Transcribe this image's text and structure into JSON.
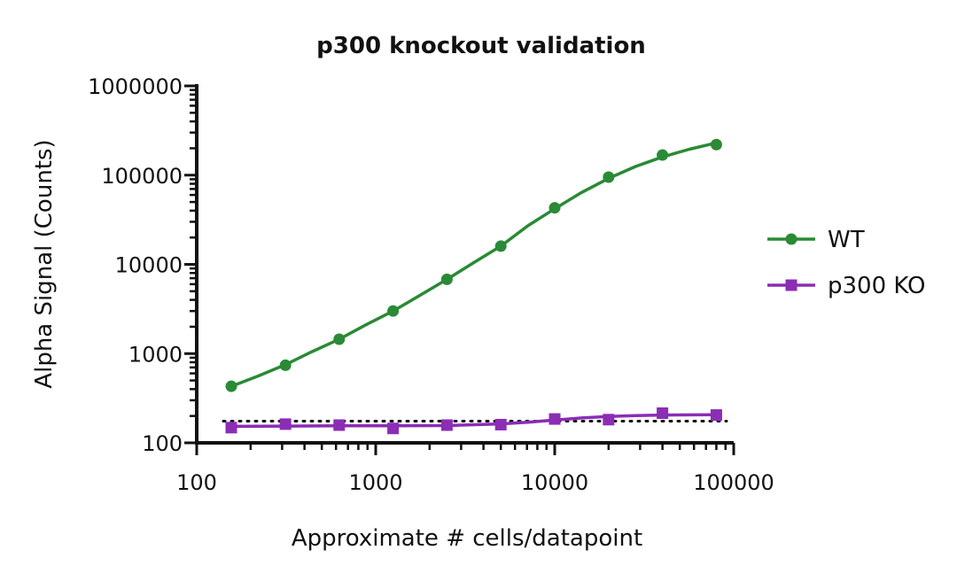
{
  "chart_data": {
    "type": "scatter",
    "title": "p300 knockout validation",
    "xlabel": "Approximate # cells/datapoint",
    "ylabel": "Alpha Signal (Counts)",
    "x_scale": "log",
    "y_scale": "log",
    "xlim": [
      100,
      100000
    ],
    "ylim": [
      100,
      1000000
    ],
    "x_ticks": [
      100,
      1000,
      10000,
      100000
    ],
    "y_ticks": [
      100,
      1000,
      10000,
      100000,
      1000000
    ],
    "x_tick_labels": [
      "100",
      "1000",
      "10000",
      "100000"
    ],
    "y_tick_labels": [
      "100",
      "1000",
      "10000",
      "100000",
      "1000000"
    ],
    "legend_position": "right",
    "grid": false,
    "series": [
      {
        "name": "WT",
        "color": "#2a8a35",
        "marker": "circle",
        "x": [
          156,
          313,
          625,
          1250,
          2500,
          5000,
          10000,
          20000,
          40000,
          80000
        ],
        "y": [
          430,
          740,
          1450,
          3000,
          6800,
          16000,
          43000,
          95000,
          168000,
          220000
        ],
        "fit_curve": [
          [
            156,
            430
          ],
          [
            220,
            560
          ],
          [
            313,
            750
          ],
          [
            440,
            1050
          ],
          [
            625,
            1450
          ],
          [
            880,
            2100
          ],
          [
            1250,
            3000
          ],
          [
            1770,
            4500
          ],
          [
            2500,
            6800
          ],
          [
            3540,
            10500
          ],
          [
            5000,
            16000
          ],
          [
            7070,
            27000
          ],
          [
            10000,
            42000
          ],
          [
            14140,
            64000
          ],
          [
            20000,
            92000
          ],
          [
            28280,
            125000
          ],
          [
            40000,
            160000
          ],
          [
            56570,
            195000
          ],
          [
            80000,
            230000
          ]
        ]
      },
      {
        "name": "p300 KO",
        "color": "#8b2db5",
        "marker": "square",
        "x": [
          156,
          313,
          625,
          1250,
          2500,
          5000,
          10000,
          20000,
          40000,
          80000
        ],
        "y": [
          148,
          162,
          158,
          145,
          158,
          160,
          185,
          182,
          215,
          205
        ],
        "fit_curve": [
          [
            156,
            153
          ],
          [
            313,
            154
          ],
          [
            625,
            155
          ],
          [
            1250,
            155
          ],
          [
            2500,
            156
          ],
          [
            5000,
            163
          ],
          [
            7070,
            170
          ],
          [
            10000,
            180
          ],
          [
            14140,
            190
          ],
          [
            20000,
            197
          ],
          [
            28280,
            202
          ],
          [
            40000,
            205
          ],
          [
            80000,
            207
          ]
        ]
      }
    ],
    "reference_line": {
      "y": 175,
      "style": "dotted",
      "color": "#111111"
    }
  }
}
